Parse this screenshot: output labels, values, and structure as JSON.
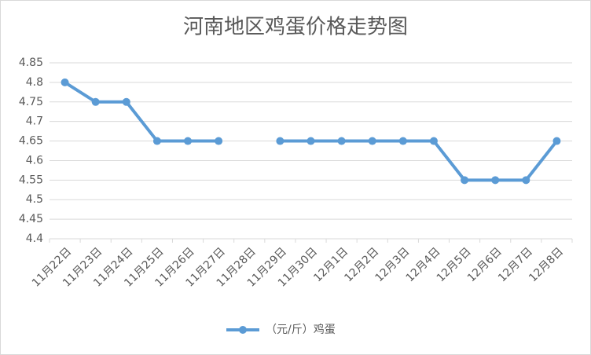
{
  "chart_data": {
    "type": "line",
    "title": "河南地区鸡蛋价格走势图",
    "categories": [
      "11月22日",
      "11月23日",
      "11月24日",
      "11月25日",
      "11月26日",
      "11月27日",
      "11月28日",
      "11月29日",
      "11月30日",
      "12月1日",
      "12月2日",
      "12月3日",
      "12月4日",
      "12月5日",
      "12月6日",
      "12月7日",
      "12月8日"
    ],
    "series": [
      {
        "name": "（元/斤）鸡蛋",
        "color": "#5b9bd5",
        "values": [
          4.8,
          4.75,
          4.75,
          4.65,
          4.65,
          4.65,
          null,
          4.65,
          4.65,
          4.65,
          4.65,
          4.65,
          4.65,
          4.55,
          4.55,
          4.55,
          4.65
        ]
      }
    ],
    "ylim": [
      4.4,
      4.85
    ],
    "yticks": [
      4.4,
      4.45,
      4.5,
      4.55,
      4.6,
      4.65,
      4.7,
      4.75,
      4.8,
      4.85
    ],
    "grid": true,
    "legend": "bottom"
  }
}
